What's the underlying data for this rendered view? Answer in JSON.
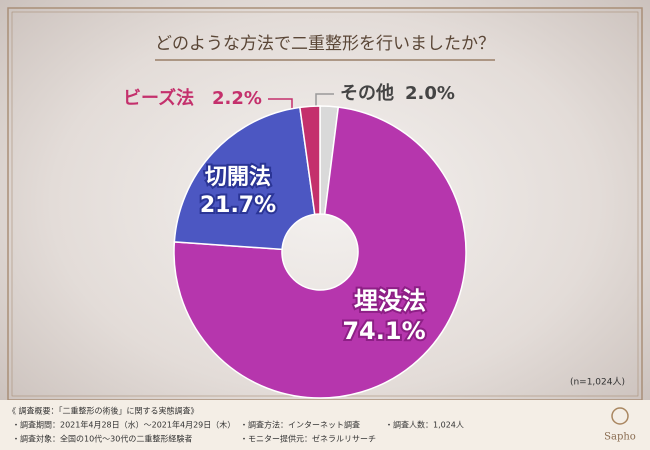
{
  "chart_data": {
    "type": "donut",
    "title": "どのような方法で二重整形を行いましたか？",
    "categories": [
      "その他",
      "埋没法",
      "切開法",
      "ビーズ法"
    ],
    "values": [
      2.0,
      74.1,
      21.7,
      2.2
    ],
    "value_labels": [
      "2.0%",
      "74.1%",
      "21.7%",
      "2.2%"
    ],
    "colors": [
      "#d9d9d9",
      "#b636ad",
      "#4c57c2",
      "#c4306c"
    ],
    "note": "(n=1,024人)"
  },
  "footer": {
    "heading": "《 調査概要：「二重整形の術後」に関する実態調査》",
    "items": [
      "・調査期間：2021年4月28日（水）～2021年4月29日（木）",
      "・調査方法：インターネット調査",
      "・調査人数：1,024人",
      "・調査対象：全国の10代～30代の二重整形経験者",
      "・モニター提供元：ゼネラルリサーチ"
    ],
    "logo": "Sapho"
  }
}
